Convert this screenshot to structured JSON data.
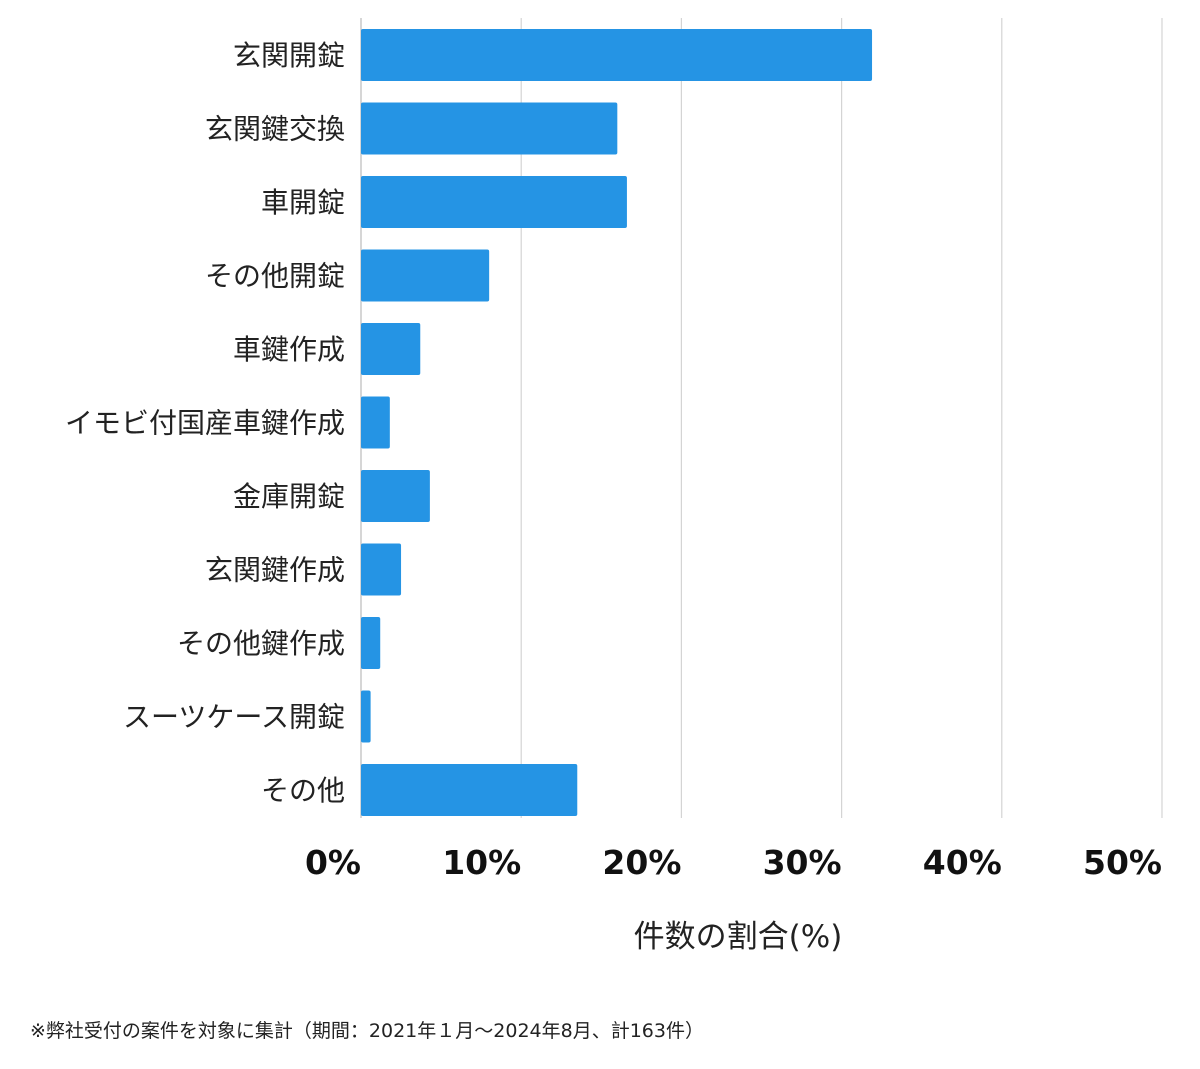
{
  "chart_data": {
    "type": "bar",
    "orientation": "horizontal",
    "categories": [
      "玄関開錠",
      "玄関鍵交換",
      "車開錠",
      "その他開錠",
      "車鍵作成",
      "イモビ付国産車鍵作成",
      "金庫開錠",
      "玄関鍵作成",
      "その他鍵作成",
      "スーツケース開錠",
      "その他"
    ],
    "values": [
      31.9,
      16.0,
      16.6,
      8.0,
      3.7,
      1.8,
      4.3,
      2.5,
      1.2,
      0.6,
      13.5
    ],
    "xlabel": "件数の割合(%)",
    "ylabel": "",
    "xlim": [
      0,
      50
    ],
    "xticks": [
      "0%",
      "10%",
      "20%",
      "30%",
      "40%",
      "50%"
    ],
    "grid": "vertical",
    "color": "#2594e4",
    "footnote": "※弊社受付の案件を対象に集計（期間：2021年１月〜2024年8月、計163件）"
  }
}
